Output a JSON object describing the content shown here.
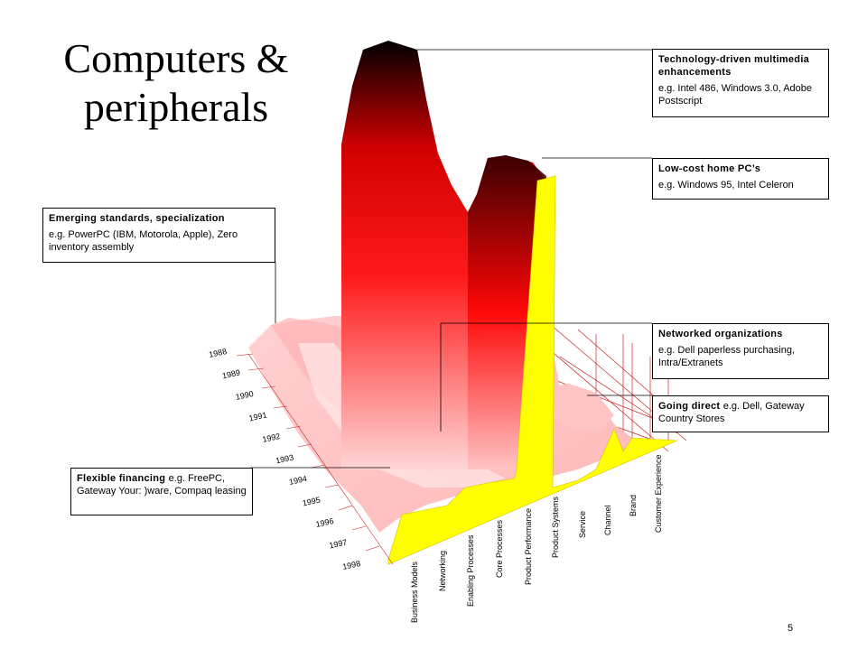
{
  "slide": {
    "title": "Computers & peripherals",
    "page_number": "5"
  },
  "annotations": [
    {
      "id": "tech",
      "head": "Technology-driven multimedia enhancements",
      "body": "e.g. Intel 486, Windows 3.0, Adobe Postscript"
    },
    {
      "id": "lowcost",
      "head": "Low-cost home PC’s",
      "body": "e.g. Windows 95, Intel Celeron"
    },
    {
      "id": "emerging",
      "head": "Emerging standards, specialization",
      "body": "e.g. PowerPC (IBM, Motorola, Apple), Zero inventory assembly"
    },
    {
      "id": "networked",
      "head": "Networked organizations",
      "body": "e.g. Dell paperless purchasing, Intra/Extranets"
    },
    {
      "id": "direct",
      "head": "Going direct",
      "body": "e.g. Dell, Gateway Country Stores"
    },
    {
      "id": "financing",
      "head": "Flexible financing",
      "body": "e.g. FreePC, Gateway Your: )ware, Compaq leasing"
    }
  ],
  "chart_data": {
    "type": "surface",
    "years": [
      "1988",
      "1989",
      "1990",
      "1991",
      "1992",
      "1993",
      "1994",
      "1995",
      "1996",
      "1997",
      "1998"
    ],
    "categories": [
      "Business Models",
      "Networking",
      "Enabling Processes",
      "Core Processes",
      "Product Performance",
      "Product Systems",
      "Service",
      "Channel",
      "Brand",
      "Customer Experience"
    ],
    "colors": {
      "low": "#ffe0e0",
      "mid": "#ff0000",
      "high": "#000000",
      "front": "#ffff00",
      "grid": "#cc0000"
    }
  }
}
